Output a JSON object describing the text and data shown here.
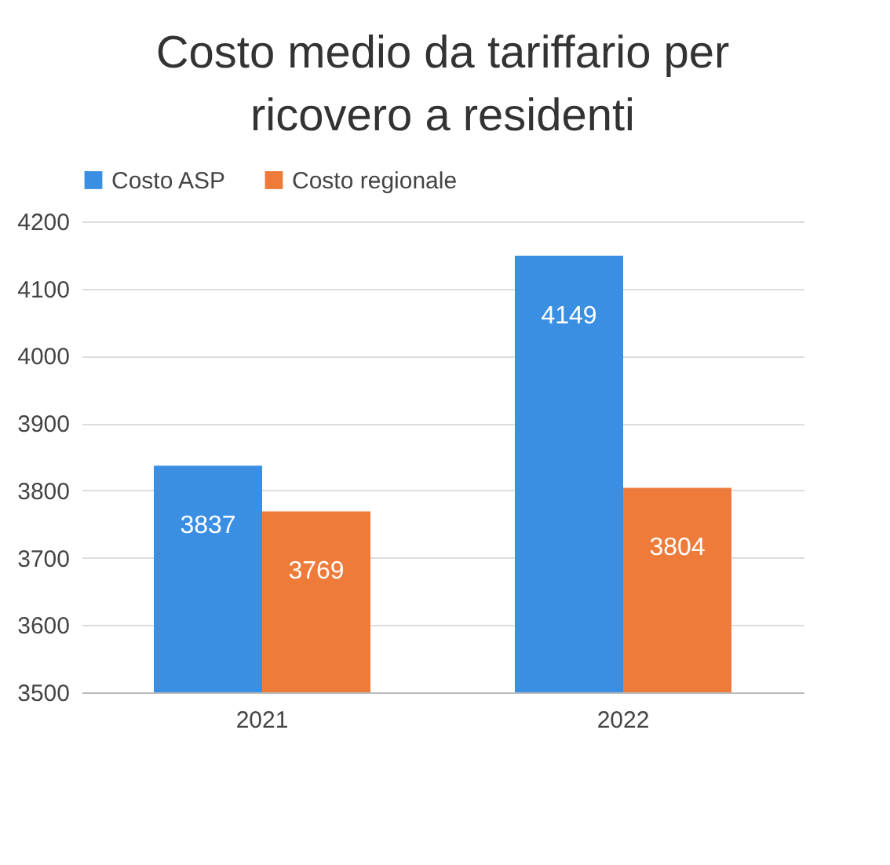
{
  "chart_data": {
    "type": "bar",
    "title": "Costo medio da tariffario per ricovero a residenti",
    "categories": [
      "2021",
      "2022"
    ],
    "series": [
      {
        "name": "Costo ASP",
        "color": "#3b8fe3",
        "values": [
          3837,
          4149
        ]
      },
      {
        "name": "Costo regionale",
        "color": "#ee7b3a",
        "values": [
          3769,
          3804
        ]
      }
    ],
    "ylim": [
      3500,
      4200
    ],
    "yticks": [
      3500,
      3600,
      3700,
      3800,
      3900,
      4000,
      4100,
      4200
    ],
    "grid": "y",
    "legend": "top",
    "data_labels": true
  }
}
